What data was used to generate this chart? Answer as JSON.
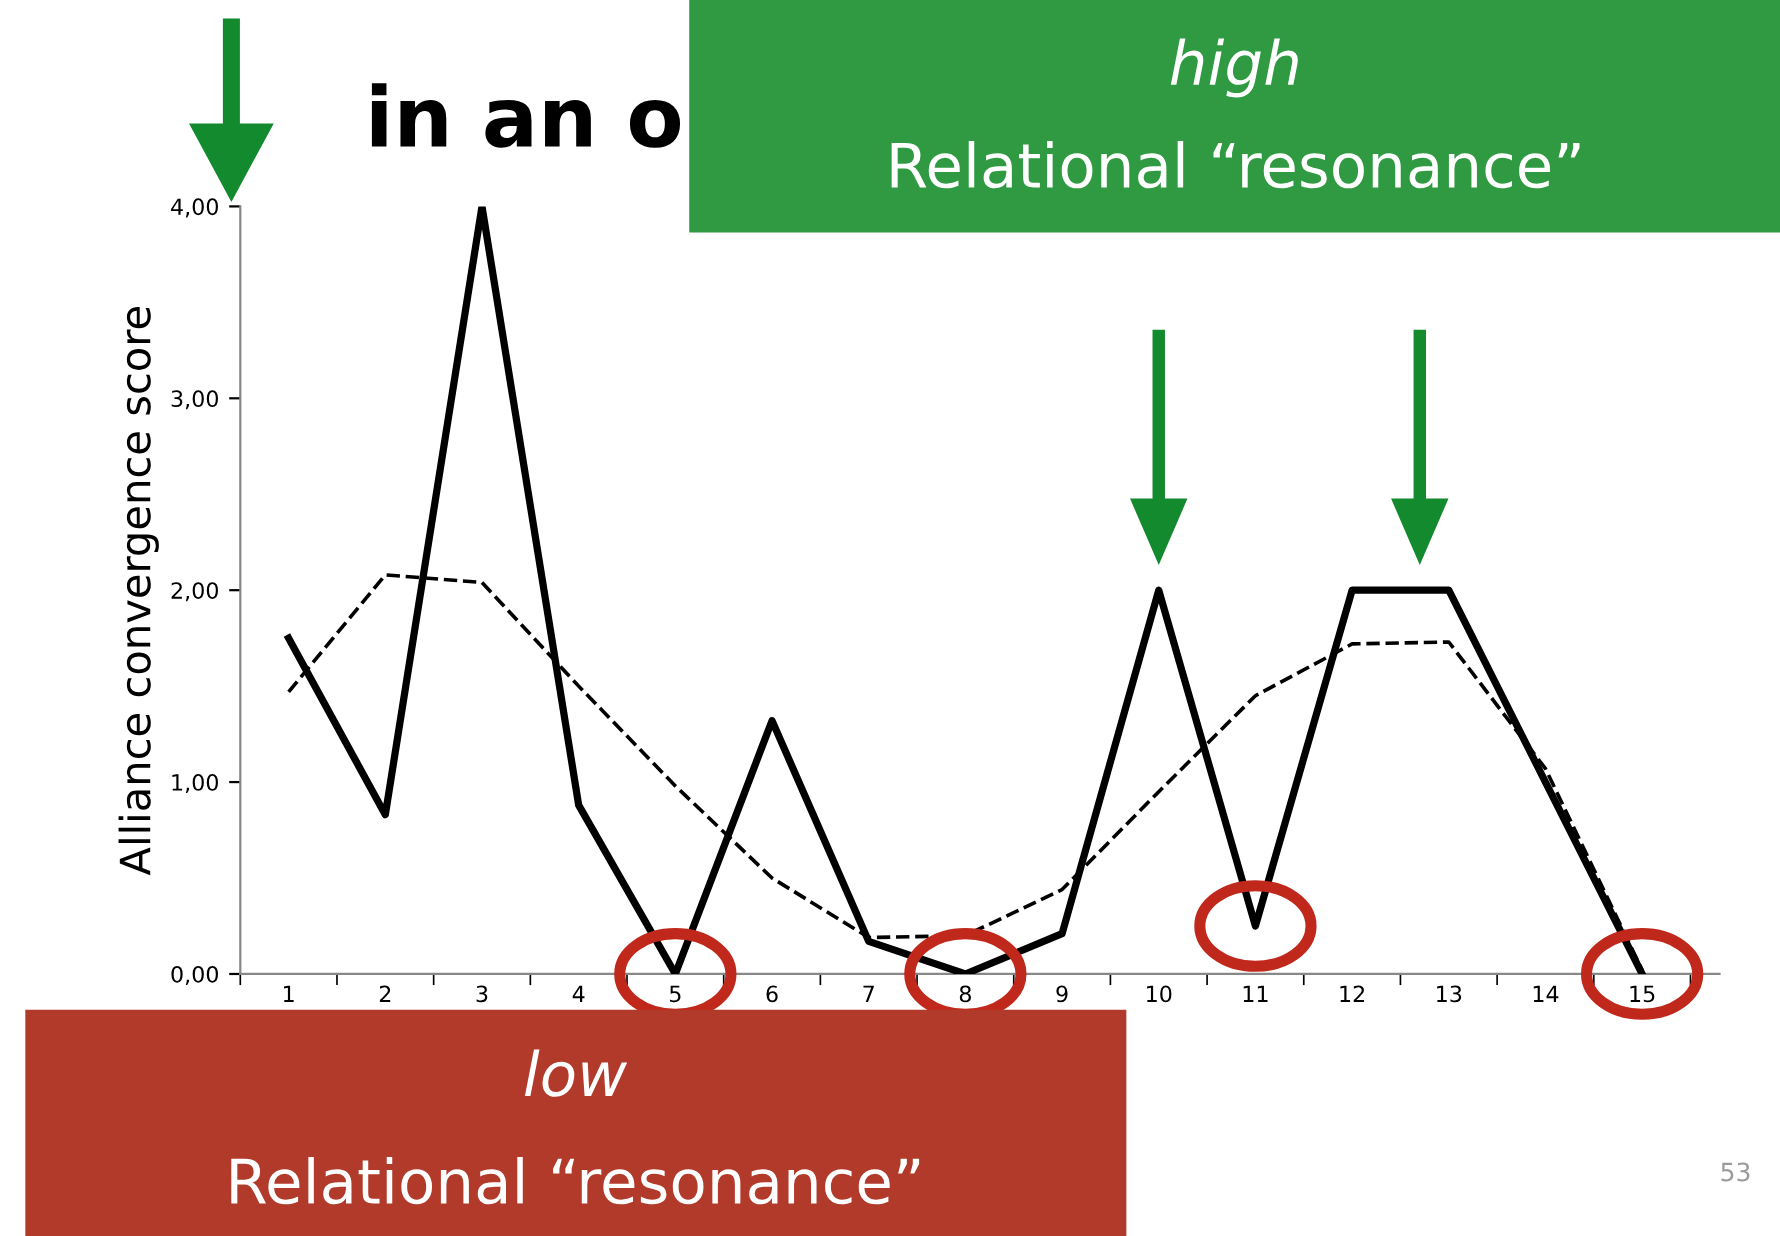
{
  "chart_data": {
    "type": "line",
    "title": "in an o",
    "ylabel": "Alliance convergence score",
    "categories": [
      "1",
      "2",
      "3",
      "4",
      "5",
      "6",
      "7",
      "8",
      "9",
      "10",
      "11",
      "12",
      "13",
      "14",
      "15"
    ],
    "series": [
      {
        "color": "#000000",
        "line_style": "solid",
        "values": [
          1.75,
          0.83,
          4.0,
          0.88,
          0.0,
          1.32,
          0.17,
          0.0,
          0.21,
          2.0,
          0.25,
          2.0,
          2.0,
          1.0,
          0.0
        ]
      },
      {
        "color": "#000000",
        "line_style": "dashed",
        "values": [
          1.47,
          2.08,
          2.04,
          1.5,
          0.98,
          0.5,
          0.19,
          0.2,
          0.44,
          0.95,
          1.45,
          1.72,
          1.73,
          1.07,
          0.02
        ]
      }
    ],
    "ylim": [
      0,
      4
    ],
    "yticks": [
      {
        "value": 0,
        "label": "0,00"
      },
      {
        "value": 1,
        "label": "1,00"
      },
      {
        "value": 2,
        "label": "2,00"
      },
      {
        "value": 3,
        "label": "3,00"
      },
      {
        "value": 4,
        "label": "4,00"
      }
    ],
    "grid": false,
    "legend": false,
    "marker": "none",
    "annotations": [
      "high\nRelational “resonance”",
      "low\nRelational “resonance”",
      "53"
    ]
  }
}
